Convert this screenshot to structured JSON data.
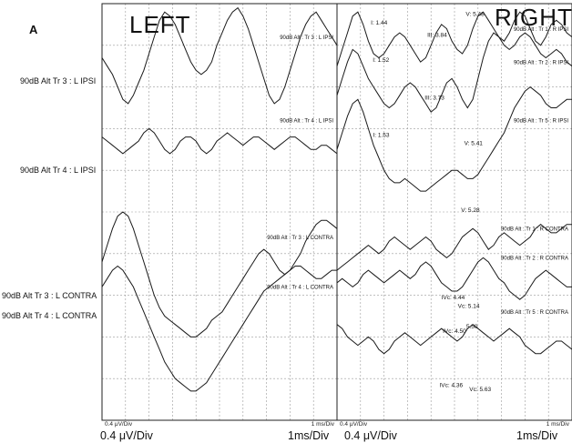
{
  "panel_letter": "A",
  "left_title": "LEFT",
  "right_title": "RIGHT",
  "side_labels": [
    "90dB Alt Tr 3 : L IPSI",
    "90dB Alt Tr 4 : L IPSI",
    "90dB Alt Tr 3 : L CONTRA",
    "90dB Alt Tr 4 : L CONTRA"
  ],
  "bottom_scale": {
    "left_amp": "0.4 μV/Div",
    "left_time": "1ms/Div",
    "right_amp": "0.4 μV/Div",
    "right_time": "1ms/Div"
  },
  "chart_data": [
    {
      "type": "line",
      "panel": "LEFT",
      "x_scale": "1 ms/Div",
      "y_scale": "0.4 μV/Div",
      "inner_scale_left": "0.4 μV/Div",
      "inner_scale_right": "1 ms/Div",
      "grid": true,
      "series": [
        {
          "name": "90dB Alt : Tr 3 : L IPSI",
          "side": "left",
          "baseline_div": 1.4,
          "y": [
            0.1,
            -0.1,
            -0.3,
            -0.6,
            -0.9,
            -1.0,
            -0.8,
            -0.5,
            -0.2,
            0.2,
            0.6,
            1.0,
            1.2,
            1.1,
            0.9,
            0.6,
            0.3,
            0.0,
            -0.2,
            -0.3,
            -0.2,
            0.0,
            0.4,
            0.7,
            1.0,
            1.2,
            1.3,
            1.1,
            0.8,
            0.4,
            0.0,
            -0.4,
            -0.8,
            -1.0,
            -0.9,
            -0.6,
            -0.2,
            0.2,
            0.6,
            0.9,
            1.1,
            1.2,
            1.0,
            0.8,
            0.6,
            0.4
          ]
        },
        {
          "name": "90dB Alt : Tr 4 : L IPSI",
          "side": "left",
          "baseline_div": 3.4,
          "y": [
            0.2,
            0.1,
            0.0,
            -0.1,
            -0.2,
            -0.1,
            0.0,
            0.1,
            0.3,
            0.4,
            0.3,
            0.1,
            -0.1,
            -0.2,
            -0.1,
            0.1,
            0.2,
            0.2,
            0.1,
            -0.1,
            -0.2,
            -0.1,
            0.1,
            0.2,
            0.3,
            0.2,
            0.1,
            0.0,
            0.1,
            0.2,
            0.2,
            0.1,
            0.0,
            -0.1,
            0.0,
            0.1,
            0.2,
            0.2,
            0.1,
            0.0,
            -0.1,
            -0.1,
            0.0,
            0.0,
            -0.1,
            -0.2
          ]
        },
        {
          "name": "90dB Alt : Tr 3 : L CONTRA",
          "side": "left",
          "baseline_div": 6.2,
          "y": [
            0.0,
            0.4,
            0.8,
            1.1,
            1.2,
            1.1,
            0.8,
            0.4,
            0.0,
            -0.4,
            -0.8,
            -1.1,
            -1.3,
            -1.4,
            -1.5,
            -1.6,
            -1.7,
            -1.8,
            -1.8,
            -1.7,
            -1.6,
            -1.4,
            -1.3,
            -1.2,
            -1.0,
            -0.8,
            -0.6,
            -0.4,
            -0.2,
            0.0,
            0.2,
            0.3,
            0.2,
            0.0,
            -0.2,
            -0.3,
            -0.2,
            0.0,
            0.2,
            0.5,
            0.7,
            0.9,
            1.0,
            1.0,
            0.9,
            0.8
          ]
        },
        {
          "name": "90dB Alt : Tr 4 : L CONTRA",
          "side": "left",
          "baseline_div": 7.4,
          "y": [
            0.6,
            0.8,
            1.0,
            1.1,
            1.0,
            0.8,
            0.6,
            0.3,
            0.0,
            -0.3,
            -0.6,
            -0.9,
            -1.2,
            -1.4,
            -1.6,
            -1.7,
            -1.8,
            -1.9,
            -1.9,
            -1.8,
            -1.7,
            -1.5,
            -1.3,
            -1.1,
            -0.9,
            -0.7,
            -0.5,
            -0.3,
            -0.1,
            0.1,
            0.3,
            0.5,
            0.6,
            0.7,
            0.8,
            0.9,
            1.0,
            1.1,
            1.1,
            1.0,
            0.9,
            0.8,
            0.8,
            0.9,
            1.0,
            1.0
          ]
        }
      ]
    },
    {
      "type": "line",
      "panel": "RIGHT",
      "x_scale": "1 ms/Div",
      "y_scale": "0.4 μV/Div",
      "inner_scale_left": "0.4 μV/Div",
      "inner_scale_right": "1 ms/Div",
      "grid": true,
      "series": [
        {
          "name": "90dB Alt : Tr 1 : R IPSI",
          "side": "right",
          "baseline_div": 1.2,
          "y": [
            -0.3,
            0.1,
            0.5,
            0.9,
            1.0,
            0.7,
            0.3,
            0.0,
            -0.1,
            0.0,
            0.2,
            0.4,
            0.5,
            0.4,
            0.2,
            0.0,
            -0.2,
            -0.1,
            0.2,
            0.5,
            0.7,
            0.6,
            0.3,
            0.1,
            0.0,
            0.2,
            0.6,
            0.9,
            1.0,
            0.8,
            0.6,
            0.4,
            0.3,
            0.5,
            0.8,
            1.0,
            0.9,
            0.6,
            0.3,
            0.2,
            0.4,
            0.7,
            0.8,
            0.7,
            0.5,
            0.4
          ]
        },
        {
          "name": "90dB Alt : Tr 2 : R IPSI",
          "side": "right",
          "baseline_div": 2.0,
          "y": [
            -0.2,
            0.2,
            0.6,
            0.9,
            0.8,
            0.5,
            0.2,
            0.0,
            -0.2,
            -0.4,
            -0.5,
            -0.4,
            -0.2,
            0.0,
            0.1,
            0.0,
            -0.2,
            -0.4,
            -0.6,
            -0.5,
            -0.2,
            0.1,
            0.2,
            0.0,
            -0.3,
            -0.5,
            -0.3,
            0.2,
            0.7,
            1.1,
            1.3,
            1.2,
            1.0,
            0.9,
            1.0,
            1.2,
            1.3,
            1.2,
            1.0,
            0.8,
            0.7,
            0.8,
            0.9,
            0.8,
            0.6,
            0.5
          ]
        },
        {
          "name": "90dB Alt : Tr 5 : R IPSI",
          "side": "right",
          "baseline_div": 3.4,
          "y": [
            -0.1,
            0.3,
            0.7,
            1.0,
            1.1,
            0.8,
            0.4,
            0.0,
            -0.3,
            -0.6,
            -0.8,
            -0.9,
            -0.9,
            -0.8,
            -0.9,
            -1.0,
            -1.1,
            -1.1,
            -1.0,
            -0.9,
            -0.8,
            -0.7,
            -0.6,
            -0.6,
            -0.7,
            -0.8,
            -0.8,
            -0.7,
            -0.5,
            -0.3,
            -0.1,
            0.1,
            0.3,
            0.6,
            0.9,
            1.1,
            1.3,
            1.4,
            1.3,
            1.2,
            1.0,
            0.9,
            0.9,
            1.0,
            1.1,
            1.1
          ]
        },
        {
          "name": "90dB Alt : Tr 1 : R CONTRA",
          "side": "right",
          "baseline_div": 6.0,
          "y": [
            -0.4,
            -0.3,
            -0.2,
            -0.1,
            0.0,
            0.1,
            0.2,
            0.1,
            0.0,
            0.1,
            0.3,
            0.4,
            0.3,
            0.2,
            0.1,
            0.2,
            0.3,
            0.4,
            0.3,
            0.1,
            0.0,
            -0.1,
            0.0,
            0.2,
            0.4,
            0.5,
            0.6,
            0.5,
            0.3,
            0.1,
            0.2,
            0.4,
            0.5,
            0.4,
            0.3,
            0.2,
            0.3,
            0.4,
            0.6,
            0.7,
            0.6,
            0.5,
            0.5,
            0.6,
            0.7,
            0.7
          ]
        },
        {
          "name": "90dB Alt : Tr 2 : R CONTRA",
          "side": "right",
          "baseline_div": 6.7,
          "y": [
            0.0,
            0.1,
            0.0,
            -0.1,
            0.0,
            0.2,
            0.3,
            0.2,
            0.1,
            0.0,
            0.1,
            0.2,
            0.3,
            0.2,
            0.1,
            0.2,
            0.4,
            0.5,
            0.4,
            0.2,
            0.0,
            -0.1,
            -0.2,
            -0.2,
            -0.1,
            0.1,
            0.3,
            0.5,
            0.6,
            0.5,
            0.3,
            0.1,
            0.0,
            -0.2,
            -0.3,
            -0.4,
            -0.3,
            -0.1,
            0.1,
            0.2,
            0.3,
            0.2,
            0.1,
            0.0,
            -0.1,
            -0.1
          ]
        },
        {
          "name": "90dB Alt : Tr 5 : R CONTRA",
          "side": "right",
          "baseline_div": 8.0,
          "y": [
            0.3,
            0.2,
            0.0,
            -0.1,
            -0.2,
            -0.1,
            0.0,
            -0.1,
            -0.3,
            -0.4,
            -0.3,
            -0.1,
            0.0,
            0.1,
            0.0,
            -0.1,
            -0.2,
            -0.1,
            0.0,
            0.1,
            0.2,
            0.1,
            0.0,
            -0.1,
            0.0,
            0.2,
            0.3,
            0.2,
            0.1,
            0.0,
            -0.1,
            0.0,
            0.1,
            0.2,
            0.1,
            0.0,
            -0.2,
            -0.3,
            -0.4,
            -0.4,
            -0.3,
            -0.2,
            -0.1,
            -0.1,
            -0.2,
            -0.3
          ]
        }
      ],
      "annotations": [
        {
          "text": "I: 1.44",
          "ms": 1.44,
          "div": 0.5
        },
        {
          "text": "III: 3.84",
          "ms": 3.84,
          "div": 0.8
        },
        {
          "text": "V: 5.48",
          "ms": 5.48,
          "div": 0.3
        },
        {
          "text": "I: 1.52",
          "ms": 1.52,
          "div": 1.4
        },
        {
          "text": "III: 3.73",
          "ms": 3.73,
          "div": 2.3
        },
        {
          "text": "V: 5.41",
          "ms": 5.41,
          "div": 3.4
        },
        {
          "text": "I: 1.53",
          "ms": 1.53,
          "div": 3.2
        },
        {
          "text": "V: 5.28",
          "ms": 5.28,
          "div": 5.0
        },
        {
          "text": "IVc: 4.44",
          "ms": 4.44,
          "div": 7.1
        },
        {
          "text": "Vc: 5.14",
          "ms": 5.14,
          "div": 7.3
        },
        {
          "text": "IVc: 4.50",
          "ms": 4.5,
          "div": 7.9
        },
        {
          "text": "5.50",
          "ms": 5.5,
          "div": 7.8
        },
        {
          "text": "IVc: 4.36",
          "ms": 4.36,
          "div": 9.2
        },
        {
          "text": "Vc: 5.63",
          "ms": 5.63,
          "div": 9.3
        }
      ]
    }
  ]
}
